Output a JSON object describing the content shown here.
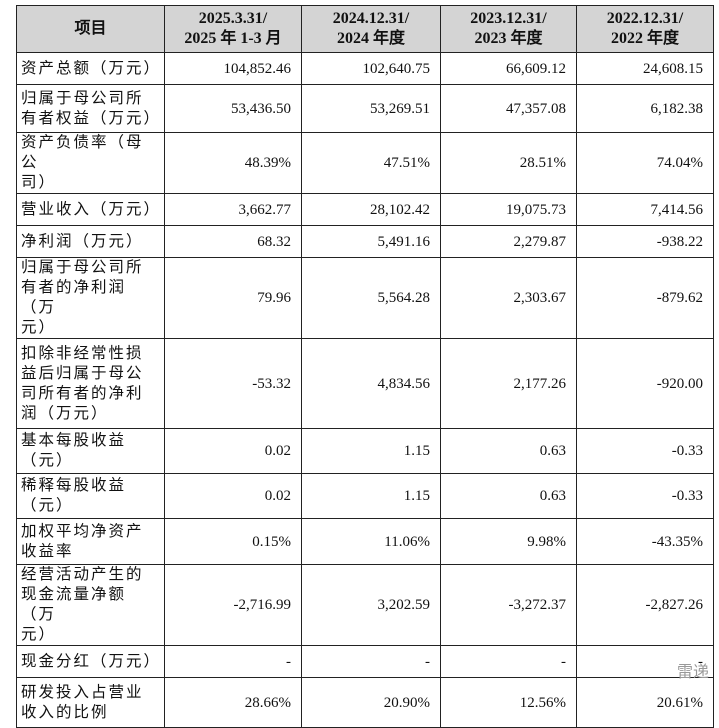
{
  "table": {
    "header": [
      [
        "项目"
      ],
      [
        "2025.3.31/",
        "2025 年 1-3 月"
      ],
      [
        "2024.12.31/",
        "2024 年度"
      ],
      [
        "2023.12.31/",
        "2023 年度"
      ],
      [
        "2022.12.31/",
        "2022 年度"
      ]
    ],
    "rows": [
      {
        "label": [
          "资产总额（万元）"
        ],
        "values": [
          "104,852.46",
          "102,640.75",
          "66,609.12",
          "24,608.15"
        ]
      },
      {
        "label": [
          "归属于母公司所",
          "有者权益（万元）"
        ],
        "values": [
          "53,436.50",
          "53,269.51",
          "47,357.08",
          "6,182.38"
        ]
      },
      {
        "label": [
          "资产负债率（母公",
          "司）"
        ],
        "values": [
          "48.39%",
          "47.51%",
          "28.51%",
          "74.04%"
        ]
      },
      {
        "label": [
          "营业收入（万元）"
        ],
        "values": [
          "3,662.77",
          "28,102.42",
          "19,075.73",
          "7,414.56"
        ]
      },
      {
        "label": [
          "净利润（万元）"
        ],
        "values": [
          "68.32",
          "5,491.16",
          "2,279.87",
          "-938.22"
        ]
      },
      {
        "label": [
          "归属于母公司所",
          "有者的净利润（万",
          "元）"
        ],
        "values": [
          "79.96",
          "5,564.28",
          "2,303.67",
          "-879.62"
        ]
      },
      {
        "label": [
          "扣除非经常性损",
          "益后归属于母公",
          "司所有者的净利",
          "润（万元）"
        ],
        "values": [
          "-53.32",
          "4,834.56",
          "2,177.26",
          "-920.00"
        ]
      },
      {
        "label": [
          "基本每股收益",
          "（元）"
        ],
        "values": [
          "0.02",
          "1.15",
          "0.63",
          "-0.33"
        ]
      },
      {
        "label": [
          "稀释每股收益",
          "（元）"
        ],
        "values": [
          "0.02",
          "1.15",
          "0.63",
          "-0.33"
        ]
      },
      {
        "label": [
          "加权平均净资产",
          "收益率"
        ],
        "values": [
          "0.15%",
          "11.06%",
          "9.98%",
          "-43.35%"
        ]
      },
      {
        "label": [
          "经营活动产生的",
          "现金流量净额（万",
          "元）"
        ],
        "values": [
          "-2,716.99",
          "3,202.59",
          "-3,272.37",
          "-2,827.26"
        ]
      },
      {
        "label": [
          "现金分红（万元）"
        ],
        "values": [
          "-",
          "-",
          "-",
          "-"
        ]
      },
      {
        "label": [
          "研发投入占营业",
          "收入的比例"
        ],
        "values": [
          "28.66%",
          "20.90%",
          "12.56%",
          "20.61%"
        ]
      }
    ]
  },
  "watermark": "雷递"
}
